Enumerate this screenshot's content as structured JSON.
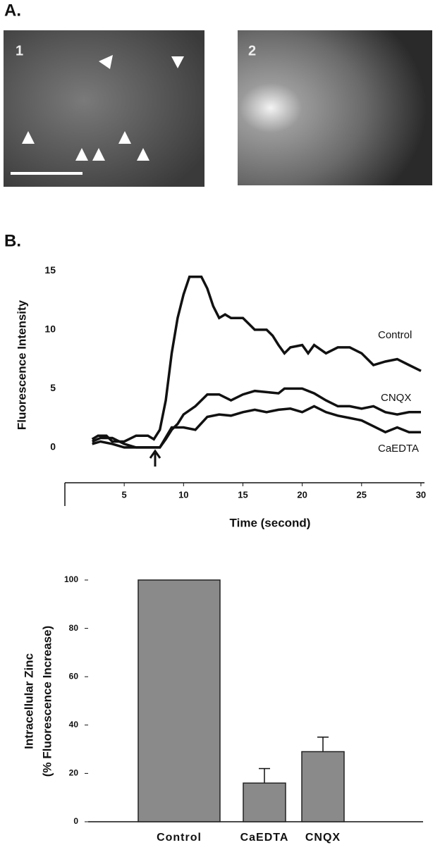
{
  "panel_labels": [
    "A.",
    "B."
  ],
  "image_labels": [
    "1",
    "2"
  ],
  "chart_data": [
    {
      "type": "line",
      "xlabel": "Time (second)",
      "ylabel": "Fluorescence Intensity",
      "xlim": [
        0,
        30.3
      ],
      "ylim": [
        -3,
        15.5
      ],
      "xticks": [
        5,
        10,
        15,
        20,
        25,
        30
      ],
      "yticks": [
        0,
        5,
        10,
        15
      ],
      "series": [
        {
          "name": "Control",
          "color": "#111111",
          "x": [
            2.3,
            2.8,
            3.5,
            4,
            5,
            6,
            7,
            7.5,
            8,
            8.5,
            9,
            9.5,
            10,
            10.5,
            11.5,
            12,
            12.5,
            13,
            13.5,
            14,
            15,
            15.5,
            16,
            17,
            17.5,
            18,
            18.5,
            19,
            20,
            20.5,
            21,
            22,
            23,
            24,
            25,
            25.5,
            26,
            27,
            28,
            29,
            30
          ],
          "values": [
            0.7,
            1,
            1,
            0.5,
            0.5,
            1,
            1,
            0.7,
            1.5,
            4,
            8,
            11,
            13,
            14.5,
            14.5,
            13.5,
            12,
            11,
            11.3,
            11,
            11,
            10.5,
            10,
            10,
            9.5,
            8.7,
            8,
            8.5,
            8.7,
            8,
            8.7,
            8,
            8.5,
            8.5,
            8,
            7.5,
            7,
            7.3,
            7.5,
            7,
            6.5
          ]
        },
        {
          "name": "CNQX",
          "color": "#111111",
          "x": [
            2.3,
            3,
            4,
            5,
            6,
            7,
            8,
            8.5,
            9,
            9.5,
            10,
            11,
            12,
            13,
            14,
            15,
            16,
            17,
            18,
            18.5,
            20,
            21,
            22,
            23,
            24,
            25,
            26,
            27,
            28,
            29,
            30
          ],
          "values": [
            0.5,
            0.8,
            0.8,
            0.3,
            0,
            0,
            0,
            0.7,
            1.5,
            2,
            2.8,
            3.5,
            4.5,
            4.5,
            4,
            4.5,
            4.8,
            4.7,
            4.6,
            5,
            5,
            4.6,
            4,
            3.5,
            3.5,
            3.3,
            3.5,
            3,
            2.8,
            3,
            3
          ]
        },
        {
          "name": "CaEDTA",
          "color": "#111111",
          "x": [
            2.3,
            3,
            4,
            5,
            6,
            7,
            8,
            9,
            10,
            11,
            12,
            13,
            14,
            15,
            16,
            17,
            18,
            19,
            20,
            21,
            22,
            23,
            24,
            25,
            26,
            27,
            28,
            29,
            30
          ],
          "values": [
            0.3,
            0.5,
            0.3,
            0,
            0,
            0,
            0,
            1.7,
            1.7,
            1.5,
            2.6,
            2.8,
            2.7,
            3,
            3.2,
            3,
            3.2,
            3.3,
            3,
            3.5,
            3,
            2.7,
            2.5,
            2.3,
            1.8,
            1.3,
            1.7,
            1.3,
            1.3
          ]
        }
      ]
    },
    {
      "type": "bar",
      "ylabel": [
        "Intracellular Zinc",
        "(% Fluorescence Increase)"
      ],
      "categories": [
        "Control",
        "CaEDTA",
        "CNQX"
      ],
      "values": [
        100,
        16,
        29
      ],
      "errors": [
        null,
        6,
        6
      ],
      "color": "#8a8a8a",
      "ylim": [
        0,
        100
      ],
      "yticks": [
        0,
        20,
        40,
        60,
        80,
        100
      ]
    }
  ]
}
